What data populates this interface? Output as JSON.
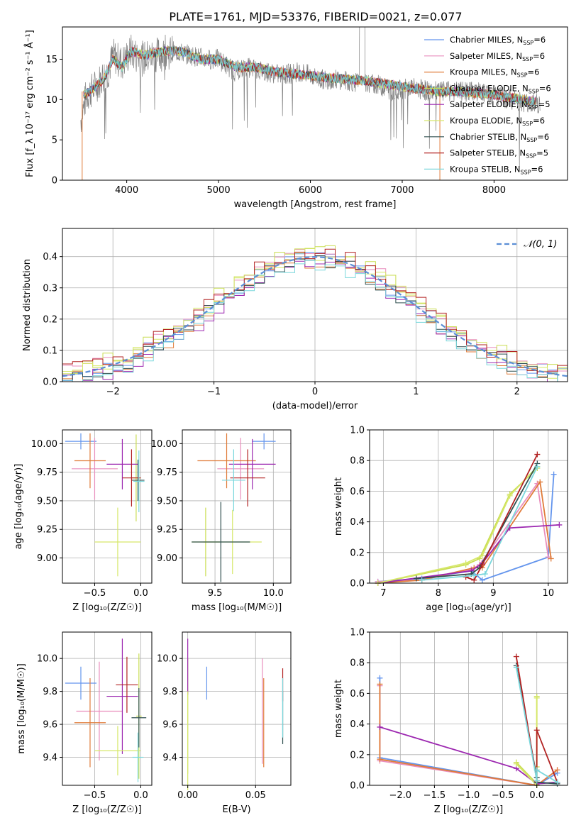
{
  "figure": {
    "title": "PLATE=1761, MJD=53376, FIBERID=0021, z=0.077"
  },
  "models": [
    {
      "name": "Chabrier MILES",
      "nssp": "6",
      "color": "#6495ed"
    },
    {
      "name": "Salpeter MILES",
      "nssp": "6",
      "color": "#e98ebd"
    },
    {
      "name": "Kroupa MILES",
      "nssp": "6",
      "color": "#e07b39"
    },
    {
      "name": "Chabrier ELODIE",
      "nssp": "6",
      "color": "#c9dd52"
    },
    {
      "name": "Salpeter ELODIE",
      "nssp": "5",
      "color": "#9c27b0"
    },
    {
      "name": "Kroupa ELODIE",
      "nssp": "6",
      "color": "#d6e86a"
    },
    {
      "name": "Chabrier STELIB",
      "nssp": "6",
      "color": "#2f4f4f"
    },
    {
      "name": "Salpeter STELIB",
      "nssp": "5",
      "color": "#b22222"
    },
    {
      "name": "Kroupa STELIB",
      "nssp": "6",
      "color": "#7ad7dc"
    }
  ],
  "chart_data": [
    {
      "id": "spectrum",
      "type": "line",
      "xlabel": "wavelength [Angstrom, rest frame]",
      "ylabel": "Flux [f_λ 10⁻¹⁷ erg cm⁻² s⁻¹ Å⁻¹]",
      "xlim": [
        3300,
        8800
      ],
      "ylim": [
        0,
        19
      ],
      "xticks": [
        4000,
        5000,
        6000,
        7000,
        8000
      ],
      "yticks": [
        0,
        5,
        10,
        15
      ],
      "data_color": "#808080",
      "data_points": [
        [
          3500,
          7.5
        ],
        [
          3560,
          10.5
        ],
        [
          3650,
          11.5
        ],
        [
          3750,
          13
        ],
        [
          3800,
          13.5
        ],
        [
          3850,
          15.5
        ],
        [
          3950,
          14.5
        ],
        [
          4050,
          16
        ],
        [
          4150,
          15
        ],
        [
          4300,
          15.5
        ],
        [
          4500,
          16
        ],
        [
          4700,
          15.5
        ],
        [
          4860,
          15
        ],
        [
          5000,
          15
        ],
        [
          5175,
          13.5
        ],
        [
          5300,
          14
        ],
        [
          5500,
          13.5
        ],
        [
          5700,
          13
        ],
        [
          5890,
          13.5
        ],
        [
          6100,
          12.5
        ],
        [
          6300,
          12.5
        ],
        [
          6563,
          12
        ],
        [
          6700,
          12
        ],
        [
          6900,
          11
        ],
        [
          7100,
          11.5
        ],
        [
          7300,
          11
        ],
        [
          7600,
          11
        ],
        [
          7800,
          11
        ],
        [
          8000,
          10.5
        ],
        [
          8200,
          10
        ],
        [
          8400,
          9.5
        ]
      ],
      "model_points": [
        [
          3500,
          10.5
        ],
        [
          3600,
          11
        ],
        [
          3750,
          12.5
        ],
        [
          3850,
          15
        ],
        [
          3950,
          14
        ],
        [
          4050,
          16
        ],
        [
          4200,
          15.5
        ],
        [
          4400,
          16
        ],
        [
          4600,
          16
        ],
        [
          4800,
          15
        ],
        [
          5000,
          15
        ],
        [
          5200,
          14
        ],
        [
          5400,
          14
        ],
        [
          5600,
          13.5
        ],
        [
          5800,
          13.2
        ],
        [
          6000,
          13
        ],
        [
          6200,
          12.7
        ],
        [
          6400,
          12.5
        ],
        [
          6600,
          12.3
        ],
        [
          6800,
          12
        ],
        [
          7000,
          11.6
        ],
        [
          7200,
          11.3
        ],
        [
          7400,
          11
        ],
        [
          7600,
          11
        ],
        [
          7800,
          10.8
        ],
        [
          8000,
          10.6
        ],
        [
          8200,
          10.2
        ],
        [
          8400,
          9.8
        ]
      ],
      "legend_position": "upper right"
    },
    {
      "id": "residuals",
      "type": "area",
      "xlabel": "(data-model)/error",
      "ylabel": "Normed distribution",
      "xlim": [
        -2.5,
        2.5
      ],
      "ylim": [
        0,
        0.49
      ],
      "xticks": [
        -2,
        -1,
        0,
        1,
        2
      ],
      "yticks": [
        0.0,
        0.1,
        0.2,
        0.3,
        0.4
      ],
      "grid": true,
      "legend": "𝒩(0, 1)",
      "gaussian_color": "#5b8ed6",
      "bin_width": 0.1,
      "histogram_offsets": [
        0.0,
        0.015,
        -0.012,
        0.02,
        -0.018,
        0.01,
        -0.008,
        0.016,
        -0.02
      ]
    },
    {
      "id": "age-vs-Z",
      "type": "scatter",
      "xlabel": "Z [log₁₀(Z/Z☉)]",
      "ylabel": "age  [log₁₀(age/yr)]",
      "xlim": [
        -0.85,
        0.12
      ],
      "ylim": [
        8.78,
        10.12
      ],
      "xticks": [
        -0.5,
        0.0
      ],
      "xtick_labels": [
        "−0.5",
        "0.0"
      ],
      "yticks": [
        9.0,
        9.25,
        9.5,
        9.75,
        10.0
      ],
      "ytick_labels": [
        "9.00",
        "9.25",
        "9.50",
        "9.75",
        "10.00"
      ],
      "grid": true,
      "points": [
        {
          "model": 0,
          "x": -0.65,
          "xerr": 0.17,
          "y": 10.02,
          "yerr": 0.07
        },
        {
          "model": 1,
          "x": -0.5,
          "xerr": 0.25,
          "y": 9.78,
          "yerr": 0.27
        },
        {
          "model": 2,
          "x": -0.55,
          "xerr": 0.17,
          "y": 9.85,
          "yerr": 0.24
        },
        {
          "model": 3,
          "x": -0.05,
          "xerr": 0.05,
          "y": 9.7,
          "yerr": 0.38
        },
        {
          "model": 4,
          "x": -0.2,
          "xerr": 0.17,
          "y": 9.82,
          "yerr": 0.22
        },
        {
          "model": 5,
          "x": -0.25,
          "xerr": 0.25,
          "y": 9.14,
          "yerr": 0.3
        },
        {
          "model": 6,
          "x": -0.03,
          "xerr": 0.07,
          "y": 9.68,
          "yerr": 0.18
        },
        {
          "model": 7,
          "x": -0.1,
          "xerr": 0.1,
          "y": 9.7,
          "yerr": 0.25
        },
        {
          "model": 8,
          "x": -0.02,
          "xerr": 0.06,
          "y": 9.67,
          "yerr": 0.27
        }
      ]
    },
    {
      "id": "age-vs-mass",
      "type": "scatter",
      "xlabel": "mass [log₁₀(M/M☉)]",
      "ylabel": "",
      "xlim": [
        9.22,
        10.15
      ],
      "ylim": [
        8.78,
        10.12
      ],
      "xticks": [
        9.5,
        10.0
      ],
      "xtick_labels": [
        "9.5",
        "10.0"
      ],
      "yticks": [
        9.0,
        9.25,
        9.5,
        9.75,
        10.0
      ],
      "ytick_labels": [
        "9.00",
        "9.25",
        "9.50",
        "9.75",
        "10.00"
      ],
      "grid": true,
      "points": [
        {
          "model": 0,
          "x": 9.92,
          "xerr": 0.1,
          "y": 10.02,
          "yerr": 0.07
        },
        {
          "model": 1,
          "x": 9.72,
          "xerr": 0.2,
          "y": 9.78,
          "yerr": 0.27
        },
        {
          "model": 2,
          "x": 9.6,
          "xerr": 0.25,
          "y": 9.85,
          "yerr": 0.24
        },
        {
          "model": 3,
          "x": 9.42,
          "xerr": 0.12,
          "y": 9.14,
          "yerr": 0.3
        },
        {
          "model": 4,
          "x": 9.82,
          "xerr": 0.2,
          "y": 9.82,
          "yerr": 0.22
        },
        {
          "model": 5,
          "x": 9.65,
          "xerr": 0.25,
          "y": 9.14,
          "yerr": 0.28
        },
        {
          "model": 6,
          "x": 9.55,
          "xerr": 0.25,
          "y": 9.14,
          "yerr": 0.35
        },
        {
          "model": 7,
          "x": 9.78,
          "xerr": 0.15,
          "y": 9.7,
          "yerr": 0.25
        },
        {
          "model": 8,
          "x": 9.66,
          "xerr": 0.1,
          "y": 9.68,
          "yerr": 0.27
        }
      ]
    },
    {
      "id": "weight-vs-age",
      "type": "line",
      "xlabel": "age  [log₁₀(age/yr)]",
      "ylabel": "mass weight",
      "xlim": [
        6.75,
        10.35
      ],
      "ylim": [
        0,
        1.0
      ],
      "xticks": [
        7,
        8,
        9,
        10
      ],
      "xtick_labels": [
        "7",
        "8",
        "9",
        "10"
      ],
      "yticks": [
        0.0,
        0.2,
        0.4,
        0.6,
        0.8,
        1.0
      ],
      "ytick_labels": [
        "0.0",
        "0.2",
        "0.4",
        "0.6",
        "0.8",
        "1.0"
      ],
      "grid": true,
      "series": [
        {
          "model": 0,
          "x": [
            6.9,
            7.7,
            8.6,
            8.8,
            10.0,
            10.1
          ],
          "y": [
            0.01,
            0.03,
            0.08,
            0.02,
            0.17,
            0.71
          ]
        },
        {
          "model": 1,
          "x": [
            6.9,
            7.7,
            8.6,
            8.75,
            9.8,
            10.0
          ],
          "y": [
            0.01,
            0.02,
            0.09,
            0.12,
            0.65,
            0.17
          ]
        },
        {
          "model": 2,
          "x": [
            6.9,
            7.7,
            8.65,
            8.8,
            9.85,
            10.05
          ],
          "y": [
            0.0,
            0.02,
            0.1,
            0.1,
            0.66,
            0.16
          ]
        },
        {
          "model": 3,
          "x": [
            6.9,
            8.5,
            8.75,
            9.3,
            9.8
          ],
          "y": [
            0.0,
            0.12,
            0.16,
            0.58,
            0.75
          ]
        },
        {
          "model": 4,
          "x": [
            6.9,
            8.6,
            8.8,
            9.3,
            10.2
          ],
          "y": [
            0.0,
            0.08,
            0.13,
            0.36,
            0.38
          ]
        },
        {
          "model": 5,
          "x": [
            6.9,
            8.5,
            8.8,
            9.3,
            9.8
          ],
          "y": [
            0.0,
            0.13,
            0.18,
            0.57,
            0.76
          ]
        },
        {
          "model": 6,
          "x": [
            7.6,
            8.6,
            8.75,
            9.8
          ],
          "y": [
            0.03,
            0.06,
            0.1,
            0.78
          ]
        },
        {
          "model": 7,
          "x": [
            8.5,
            8.65,
            8.8,
            9.8
          ],
          "y": [
            0.04,
            0.02,
            0.12,
            0.84
          ]
        },
        {
          "model": 8,
          "x": [
            7.7,
            8.65,
            8.85,
            9.8
          ],
          "y": [
            0.02,
            0.05,
            0.06,
            0.76
          ]
        }
      ]
    },
    {
      "id": "mass-vs-Z",
      "type": "scatter",
      "xlabel": "Z [log₁₀(Z/Z☉)]",
      "ylabel": "mass [log₁₀(M/M☉)]",
      "xlim": [
        -0.85,
        0.12
      ],
      "ylim": [
        9.23,
        10.16
      ],
      "xticks": [
        -0.5,
        0.0
      ],
      "xtick_labels": [
        "−0.5",
        "0.0"
      ],
      "yticks": [
        9.4,
        9.6,
        9.8,
        10.0
      ],
      "ytick_labels": [
        "9.4",
        "9.6",
        "9.8",
        "10.0"
      ],
      "grid": true,
      "points": [
        {
          "model": 0,
          "x": -0.65,
          "xerr": 0.17,
          "y": 9.85,
          "yerr": 0.1
        },
        {
          "model": 1,
          "x": -0.45,
          "xerr": 0.25,
          "y": 9.68,
          "yerr": 0.3
        },
        {
          "model": 2,
          "x": -0.55,
          "xerr": 0.17,
          "y": 9.61,
          "yerr": 0.27
        },
        {
          "model": 3,
          "x": -0.02,
          "xerr": 0.03,
          "y": 9.65,
          "yerr": 0.38
        },
        {
          "model": 4,
          "x": -0.2,
          "xerr": 0.17,
          "y": 9.77,
          "yerr": 0.35
        },
        {
          "model": 5,
          "x": -0.25,
          "xerr": 0.25,
          "y": 9.44,
          "yerr": 0.15
        },
        {
          "model": 6,
          "x": -0.02,
          "xerr": 0.08,
          "y": 9.64,
          "yerr": 0.18
        },
        {
          "model": 7,
          "x": -0.15,
          "xerr": 0.12,
          "y": 9.84,
          "yerr": 0.17
        },
        {
          "model": 8,
          "x": -0.03,
          "xerr": 0.06,
          "y": 9.4,
          "yerr": 0.15
        }
      ]
    },
    {
      "id": "mass-vs-EBV",
      "type": "scatter",
      "xlabel": "E(B-V)",
      "ylabel": "",
      "xlim": [
        -0.004,
        0.076
      ],
      "ylim": [
        9.23,
        10.16
      ],
      "xticks": [
        0.0,
        0.05
      ],
      "xtick_labels": [
        "0.00",
        "0.05"
      ],
      "yticks": [
        9.4,
        9.6,
        9.8,
        10.0
      ],
      "ytick_labels": [
        "9.4",
        "9.6",
        "9.8",
        "10.0"
      ],
      "grid": true,
      "points": [
        {
          "model": 0,
          "x": 0.014,
          "xerr": 0,
          "y": 9.85,
          "yerr": 0.1
        },
        {
          "model": 1,
          "x": 0.055,
          "xerr": 0,
          "y": 9.68,
          "yerr": 0.32
        },
        {
          "model": 2,
          "x": 0.056,
          "xerr": 0,
          "y": 9.61,
          "yerr": 0.27
        },
        {
          "model": 3,
          "x": 0.0,
          "xerr": 0,
          "y": 9.65,
          "yerr": 0.35
        },
        {
          "model": 4,
          "x": 0.0,
          "xerr": 0,
          "y": 9.95,
          "yerr": 0.17
        },
        {
          "model": 5,
          "x": 0.0,
          "xerr": 0,
          "y": 9.5,
          "yerr": 0.3
        },
        {
          "model": 6,
          "x": 0.07,
          "xerr": 0,
          "y": 9.64,
          "yerr": 0.16
        },
        {
          "model": 7,
          "x": 0.07,
          "xerr": 0,
          "y": 9.84,
          "yerr": 0.1
        },
        {
          "model": 8,
          "x": 0.07,
          "xerr": 0,
          "y": 9.7,
          "yerr": 0.18
        }
      ]
    },
    {
      "id": "weight-vs-Z",
      "type": "line",
      "xlabel": "Z [log₁₀(Z/Z☉)]",
      "ylabel": "mass weight",
      "xlim": [
        -2.45,
        0.45
      ],
      "ylim": [
        0,
        1.0
      ],
      "xticks": [
        -2.0,
        -1.5,
        -1.0,
        -0.5,
        0.0
      ],
      "xtick_labels": [
        "−2.0",
        "−1.5",
        "−1.0",
        "−0.5",
        "0.0"
      ],
      "yticks": [
        0.0,
        0.2,
        0.4,
        0.6,
        0.8,
        1.0
      ],
      "ytick_labels": [
        "0.0",
        "0.2",
        "0.4",
        "0.6",
        "0.8",
        "1.0"
      ],
      "grid": true,
      "series": [
        {
          "model": 0,
          "x": [
            -2.3,
            -2.3,
            0.0,
            0.3
          ],
          "y": [
            0.7,
            0.18,
            0.0,
            0.08
          ]
        },
        {
          "model": 1,
          "x": [
            -2.3,
            -2.3,
            0.0,
            0.3
          ],
          "y": [
            0.65,
            0.16,
            0.0,
            0.1
          ]
        },
        {
          "model": 2,
          "x": [
            -2.3,
            -2.3,
            0.0,
            0.3
          ],
          "y": [
            0.66,
            0.17,
            0.0,
            0.1
          ]
        },
        {
          "model": 3,
          "x": [
            -0.3,
            0.0,
            0.0,
            0.0
          ],
          "y": [
            0.15,
            0.01,
            0.58,
            0.12
          ]
        },
        {
          "model": 4,
          "x": [
            -2.3,
            -0.3,
            0.0,
            0.3
          ],
          "y": [
            0.38,
            0.11,
            0.01,
            0.02
          ]
        },
        {
          "model": 5,
          "x": [
            -0.3,
            0.0,
            0.0,
            0.0
          ],
          "y": [
            0.14,
            0.0,
            0.57,
            0.1
          ]
        },
        {
          "model": 6,
          "x": [
            -0.3,
            0.0,
            0.0,
            0.3
          ],
          "y": [
            0.78,
            0.05,
            0.02,
            0.01
          ]
        },
        {
          "model": 7,
          "x": [
            -0.3,
            0.0,
            0.0,
            0.3
          ],
          "y": [
            0.84,
            0.03,
            0.36,
            0.02
          ]
        },
        {
          "model": 8,
          "x": [
            -0.3,
            0.0,
            0.0,
            0.3
          ],
          "y": [
            0.77,
            0.03,
            0.1,
            0.02
          ]
        }
      ]
    }
  ]
}
